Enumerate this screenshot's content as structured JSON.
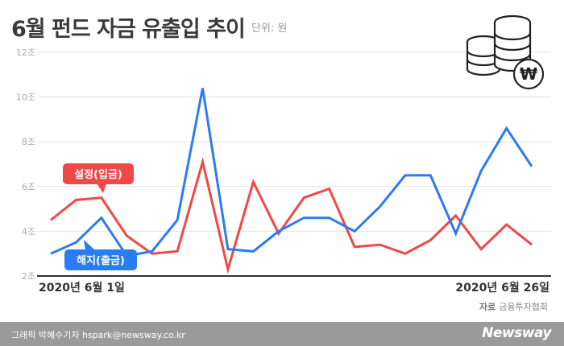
{
  "header": {
    "title": "6월 펀드 자금 유출입 추이",
    "unit": "단위: 원"
  },
  "icon": "coin-stack-won-icon",
  "footer": {
    "source_label": "자료",
    "source": "금융투자협회",
    "credit": "그래픽 박혜수기자 hspark@newsway.co.kr",
    "brand": "Newsway"
  },
  "colors": {
    "inflow": "#f04848",
    "outflow": "#2b7cf0",
    "grid": "#e2e2e2"
  },
  "chart_data": {
    "type": "line",
    "x_start_label": "2020년 6월 1일",
    "x_end_label": "2020년 6월 26일",
    "y_ticks": [
      {
        "value": 2,
        "label": "2조"
      },
      {
        "value": 4,
        "label": "4조"
      },
      {
        "value": 6,
        "label": "6조"
      },
      {
        "value": 8,
        "label": "8조"
      },
      {
        "value": 10,
        "label": "10조"
      },
      {
        "value": 12,
        "label": "12조"
      }
    ],
    "ylim": [
      2,
      12
    ],
    "grid": true,
    "series": [
      {
        "name": "설정(입금)",
        "values": [
          4.5,
          5.4,
          5.5,
          3.8,
          3.0,
          3.1,
          7.1,
          2.3,
          6.2,
          3.9,
          5.5,
          5.9,
          3.3,
          3.4,
          3.0,
          3.6,
          4.7,
          3.2,
          4.3,
          3.4
        ]
      },
      {
        "name": "해지(출금)",
        "values": [
          3.0,
          3.5,
          4.6,
          2.9,
          3.1,
          4.5,
          10.4,
          3.2,
          3.1,
          4.0,
          4.6,
          4.6,
          4.0,
          5.1,
          6.5,
          6.5,
          3.9,
          6.7,
          8.6,
          6.9
        ]
      }
    ]
  }
}
